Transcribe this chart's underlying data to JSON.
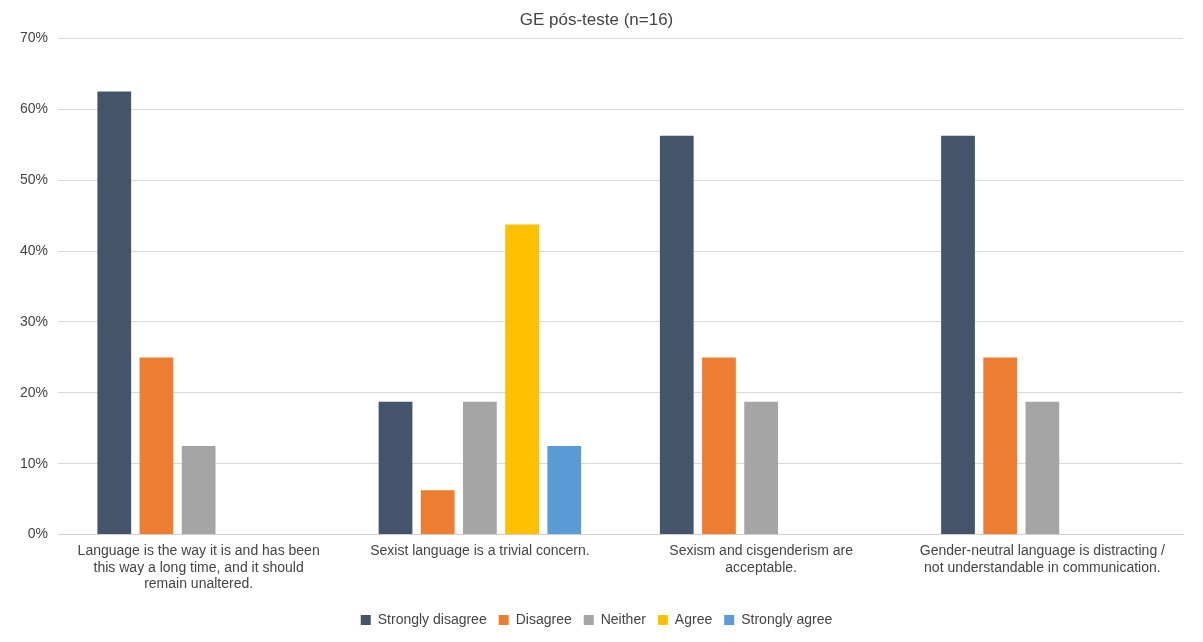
{
  "chart_data": {
    "type": "bar",
    "title": "GE pós-teste (n=16)",
    "categories": [
      "Language is the way it is and has been this way a long time, and it should remain unaltered.",
      "Sexist language is a trivial concern.",
      "Sexism and cisgenderism are acceptable.",
      "Gender-neutral language is distracting / not understandable in communication."
    ],
    "series": [
      {
        "name": "Strongly disagree",
        "color": "#44546a",
        "values": [
          62.5,
          18.75,
          56.25,
          56.25
        ]
      },
      {
        "name": "Disagree",
        "color": "#ed7d31",
        "values": [
          25,
          6.25,
          25,
          25
        ]
      },
      {
        "name": "Neither",
        "color": "#a5a5a5",
        "values": [
          12.5,
          18.75,
          18.75,
          18.75
        ]
      },
      {
        "name": "Agree",
        "color": "#ffc000",
        "values": [
          0,
          43.75,
          0,
          0
        ]
      },
      {
        "name": "Strongly agree",
        "color": "#5b9bd5",
        "values": [
          0,
          12.5,
          0,
          0
        ]
      }
    ],
    "ylim": [
      0,
      70
    ],
    "yticks": [
      {
        "value": 0,
        "label": "0%"
      },
      {
        "value": 10,
        "label": "10%"
      },
      {
        "value": 20,
        "label": "20%"
      },
      {
        "value": 30,
        "label": "30%"
      },
      {
        "value": 40,
        "label": "40%"
      },
      {
        "value": 50,
        "label": "50%"
      },
      {
        "value": 60,
        "label": "60%"
      },
      {
        "value": 70,
        "label": "70%"
      }
    ],
    "grid": "y",
    "legend": "bottom"
  }
}
